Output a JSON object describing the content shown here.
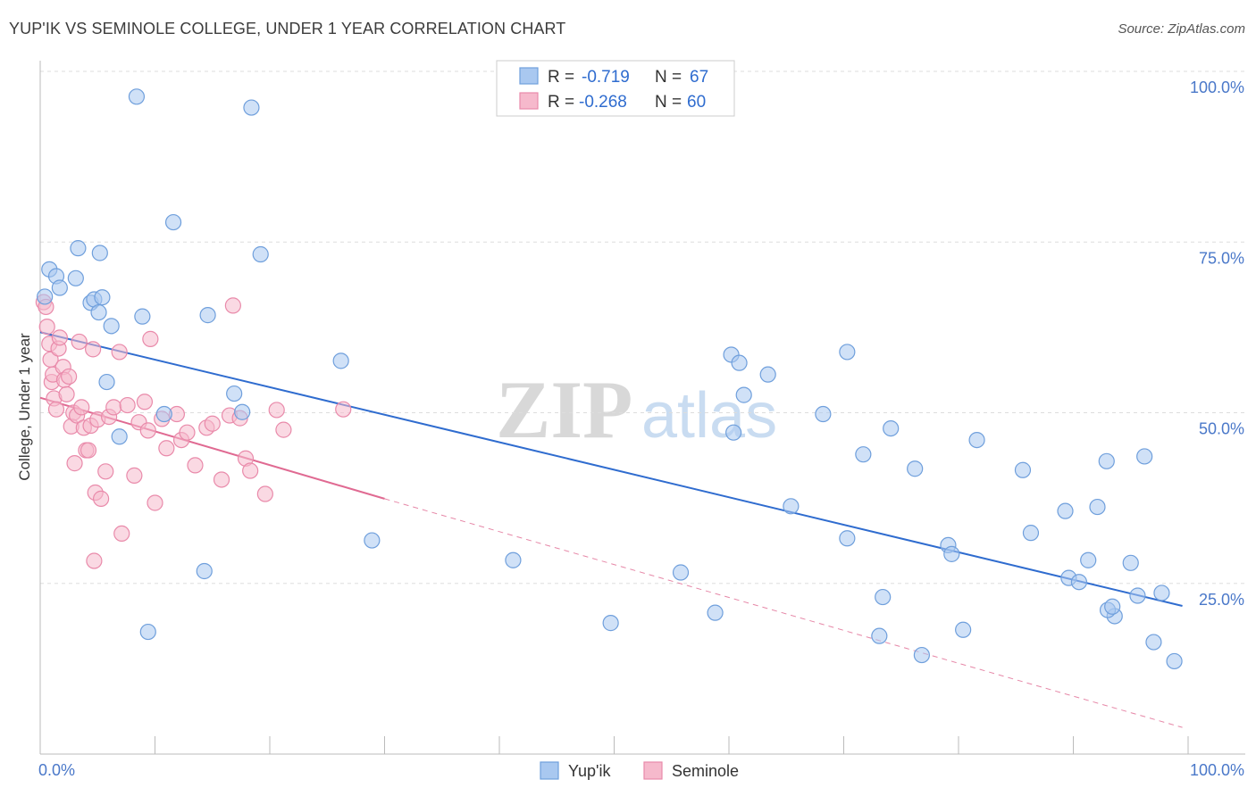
{
  "title": "YUP'IK VS SEMINOLE COLLEGE, UNDER 1 YEAR CORRELATION CHART",
  "source": "Source: ZipAtlas.com",
  "watermark": {
    "zip": "ZIP",
    "atlas": "atlas"
  },
  "colors": {
    "yupik_fill": "#a9c8f0",
    "yupik_stroke": "#6f9fdc",
    "yupik_line": "#2f6ccf",
    "seminole_fill": "#f6b9cc",
    "seminole_stroke": "#e98aaa",
    "seminole_line": "#e06a92",
    "grid": "#dddddd",
    "label": "#4a78c9"
  },
  "legend": {
    "rows": [
      {
        "series": "yupik",
        "r_label": "R =",
        "r_value": "-0.719",
        "n_label": "N =",
        "n_value": "67"
      },
      {
        "series": "seminole",
        "r_label": "R =",
        "r_value": "-0.268",
        "n_label": "N =",
        "n_value": "60"
      }
    ]
  },
  "chart_data": {
    "type": "scatter",
    "title": "YUP'IK VS SEMINOLE COLLEGE, UNDER 1 YEAR CORRELATION CHART",
    "xlabel": "",
    "ylabel": "College, Under 1 year",
    "xlim": [
      0,
      100
    ],
    "ylim": [
      0,
      100
    ],
    "x_tick_labels": [
      {
        "value": 0,
        "label": "0.0%"
      },
      {
        "value": 100,
        "label": "100.0%"
      }
    ],
    "y_tick_labels": [
      {
        "value": 100,
        "label": "100.0%"
      },
      {
        "value": 75,
        "label": "75.0%"
      },
      {
        "value": 50,
        "label": "50.0%"
      },
      {
        "value": 25,
        "label": "25.0%"
      }
    ],
    "x_minor_ticks": [
      0,
      10,
      20,
      30,
      40,
      50,
      60,
      70,
      80,
      90,
      100
    ],
    "grid": true,
    "series": [
      {
        "name": "Yup'ik",
        "key": "yupik",
        "points": [
          [
            0.4,
            67
          ],
          [
            0.8,
            71
          ],
          [
            1.4,
            70
          ],
          [
            1.7,
            68.3
          ],
          [
            3.1,
            69.7
          ],
          [
            3.3,
            74.1
          ],
          [
            4.4,
            66.1
          ],
          [
            4.7,
            66.6
          ],
          [
            5.1,
            64.7
          ],
          [
            5.2,
            73.4
          ],
          [
            5.4,
            66.9
          ],
          [
            6.2,
            62.7
          ],
          [
            5.8,
            54.5
          ],
          [
            6.9,
            46.5
          ],
          [
            8.4,
            96.3
          ],
          [
            8.9,
            64.1
          ],
          [
            9.4,
            17.9
          ],
          [
            10.8,
            49.8
          ],
          [
            11.6,
            77.9
          ],
          [
            14.3,
            26.8
          ],
          [
            14.6,
            64.3
          ],
          [
            16.9,
            52.8
          ],
          [
            17.6,
            50.1
          ],
          [
            18.4,
            94.7
          ],
          [
            19.2,
            73.2
          ],
          [
            26.2,
            57.6
          ],
          [
            28.9,
            31.3
          ],
          [
            41.2,
            28.4
          ],
          [
            49.7,
            19.2
          ],
          [
            55.8,
            26.6
          ],
          [
            58.8,
            20.7
          ],
          [
            60.2,
            58.5
          ],
          [
            60.4,
            47.1
          ],
          [
            60.9,
            57.3
          ],
          [
            61.3,
            52.6
          ],
          [
            63.4,
            55.6
          ],
          [
            65.4,
            36.3
          ],
          [
            68.2,
            49.8
          ],
          [
            70.3,
            58.9
          ],
          [
            70.3,
            31.6
          ],
          [
            71.7,
            43.9
          ],
          [
            73.4,
            23.0
          ],
          [
            73.1,
            17.3
          ],
          [
            74.1,
            47.7
          ],
          [
            76.2,
            41.8
          ],
          [
            76.8,
            14.5
          ],
          [
            79.1,
            30.6
          ],
          [
            79.4,
            29.3
          ],
          [
            80.4,
            18.2
          ],
          [
            81.6,
            46.0
          ],
          [
            85.6,
            41.6
          ],
          [
            86.3,
            32.4
          ],
          [
            89.3,
            35.6
          ],
          [
            89.6,
            25.8
          ],
          [
            90.5,
            25.2
          ],
          [
            91.3,
            28.4
          ],
          [
            92.1,
            36.2
          ],
          [
            93.6,
            20.2
          ],
          [
            92.9,
            42.9
          ],
          [
            93.0,
            21.1
          ],
          [
            93.4,
            21.6
          ],
          [
            95.0,
            28.0
          ],
          [
            95.6,
            23.2
          ],
          [
            96.2,
            43.6
          ],
          [
            97.0,
            16.4
          ],
          [
            97.7,
            23.6
          ],
          [
            98.8,
            13.6
          ]
        ],
        "trend": {
          "x": [
            0,
            99.5
          ],
          "y": [
            61.8,
            21.7
          ]
        }
      },
      {
        "name": "Seminole",
        "key": "seminole",
        "points": [
          [
            0.3,
            66.2
          ],
          [
            0.5,
            65.5
          ],
          [
            0.6,
            62.6
          ],
          [
            0.8,
            60.1
          ],
          [
            0.9,
            57.8
          ],
          [
            1.0,
            54.5
          ],
          [
            1.1,
            55.6
          ],
          [
            1.2,
            52.1
          ],
          [
            1.4,
            50.5
          ],
          [
            1.6,
            59.4
          ],
          [
            1.7,
            61.0
          ],
          [
            2.0,
            56.7
          ],
          [
            2.1,
            54.8
          ],
          [
            2.3,
            52.7
          ],
          [
            2.5,
            55.3
          ],
          [
            2.7,
            48.0
          ],
          [
            2.9,
            50.0
          ],
          [
            3.0,
            42.6
          ],
          [
            3.2,
            49.6
          ],
          [
            3.4,
            60.4
          ],
          [
            3.6,
            50.8
          ],
          [
            3.8,
            47.8
          ],
          [
            4.0,
            44.5
          ],
          [
            4.2,
            44.5
          ],
          [
            4.4,
            48.1
          ],
          [
            4.6,
            59.3
          ],
          [
            4.8,
            38.3
          ],
          [
            5.0,
            49.0
          ],
          [
            5.3,
            37.4
          ],
          [
            5.7,
            41.4
          ],
          [
            6.0,
            49.4
          ],
          [
            6.4,
            50.8
          ],
          [
            6.9,
            58.9
          ],
          [
            7.1,
            32.3
          ],
          [
            7.6,
            51.1
          ],
          [
            8.2,
            40.8
          ],
          [
            8.6,
            48.6
          ],
          [
            9.1,
            51.6
          ],
          [
            9.4,
            47.4
          ],
          [
            9.6,
            60.8
          ],
          [
            10.0,
            36.8
          ],
          [
            10.6,
            49.1
          ],
          [
            11.0,
            44.8
          ],
          [
            11.9,
            49.8
          ],
          [
            12.3,
            46.0
          ],
          [
            12.8,
            47.1
          ],
          [
            13.5,
            42.3
          ],
          [
            14.5,
            47.8
          ],
          [
            15.0,
            48.4
          ],
          [
            15.8,
            40.2
          ],
          [
            16.5,
            49.6
          ],
          [
            16.8,
            65.7
          ],
          [
            17.4,
            49.2
          ],
          [
            17.9,
            43.3
          ],
          [
            18.3,
            41.5
          ],
          [
            19.6,
            38.1
          ],
          [
            20.6,
            50.4
          ],
          [
            21.2,
            47.5
          ],
          [
            26.4,
            50.5
          ],
          [
            4.7,
            28.3
          ]
        ],
        "trend": {
          "x": [
            0,
            30
          ],
          "y": [
            52.2,
            37.4
          ]
        },
        "trend_extension": {
          "x": [
            30,
            99.5
          ],
          "y": [
            37.4,
            3.9
          ]
        }
      }
    ],
    "bottom_legend": [
      "Yup'ik",
      "Seminole"
    ]
  }
}
